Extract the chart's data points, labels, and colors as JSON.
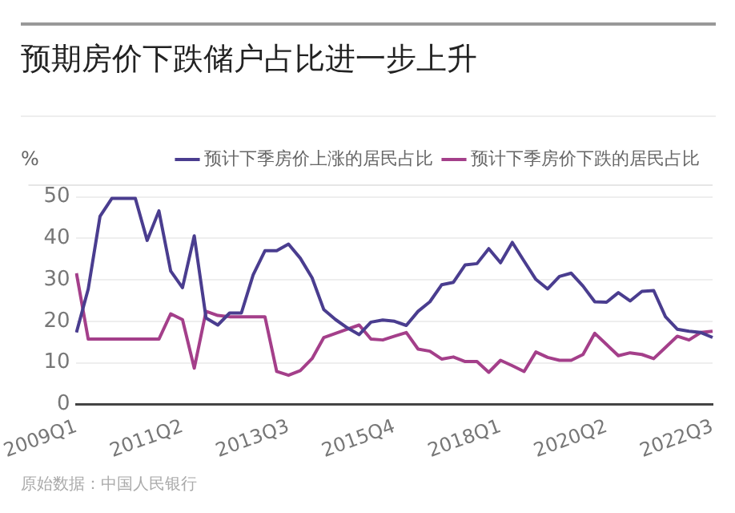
{
  "chart_data": {
    "type": "line",
    "title": "预期房价下跌储户占比进一步上升",
    "ylabel": "%",
    "categories": [
      "2009Q1",
      null,
      null,
      null,
      null,
      null,
      null,
      null,
      null,
      "2011Q2",
      null,
      null,
      null,
      null,
      null,
      null,
      null,
      null,
      "2013Q3",
      null,
      null,
      null,
      null,
      null,
      null,
      null,
      null,
      "2015Q4",
      null,
      null,
      null,
      null,
      null,
      null,
      null,
      null,
      "2018Q1",
      null,
      null,
      null,
      null,
      null,
      null,
      null,
      null,
      "2020Q2",
      null,
      null,
      null,
      null,
      null,
      null,
      null,
      null,
      "2022Q3"
    ],
    "series": [
      {
        "name": "预计下季房价上涨的居民占比",
        "color": "#4a3d8f",
        "values": [
          17.3,
          27.8,
          45.3,
          49.6,
          49.6,
          49.6,
          39.5,
          46.6,
          32.1,
          28.1,
          40.6,
          20.8,
          19.1,
          22,
          22,
          31.2,
          37,
          37,
          38.6,
          35.2,
          30.5,
          22.8,
          20.4,
          18.4,
          16.8,
          19.8,
          20.3,
          20,
          19,
          22.4,
          24.7,
          28.8,
          29.4,
          33.6,
          33.9,
          37.5,
          34.1,
          39,
          34.5,
          30.1,
          27.8,
          30.8,
          31.6,
          28.5,
          24.7,
          24.6,
          26.9,
          24.9,
          27.2,
          27.4,
          21.1,
          18.1,
          17.6,
          17.3,
          16.1
        ]
      },
      {
        "name": "预计下季房价下跌的居民占比",
        "color": "#a43f8a",
        "values": [
          31.6,
          15.7,
          15.7,
          15.7,
          15.7,
          15.7,
          15.7,
          15.7,
          21.8,
          20.4,
          8.7,
          22.4,
          21.4,
          21.1,
          21.1,
          21.1,
          21.1,
          7.9,
          7,
          8.1,
          11,
          16.1,
          17.1,
          18.1,
          19.1,
          15.7,
          15.5,
          16.4,
          17.3,
          13.3,
          12.8,
          10.9,
          11.4,
          10.3,
          10.3,
          7.7,
          10.6,
          9.3,
          7.9,
          12.6,
          11.3,
          10.6,
          10.6,
          12,
          17.1,
          14.4,
          11.7,
          12.4,
          12,
          11,
          13.7,
          16.4,
          15.5,
          17.3,
          17.6
        ]
      }
    ],
    "ylim": [
      0,
      53
    ],
    "yticks": [
      0,
      10,
      20,
      30,
      40,
      50
    ],
    "grid": "y",
    "legend": "top right",
    "marker": "none",
    "line_style": "solid",
    "annotations": [
      "原始数据：中国人民银行"
    ]
  }
}
